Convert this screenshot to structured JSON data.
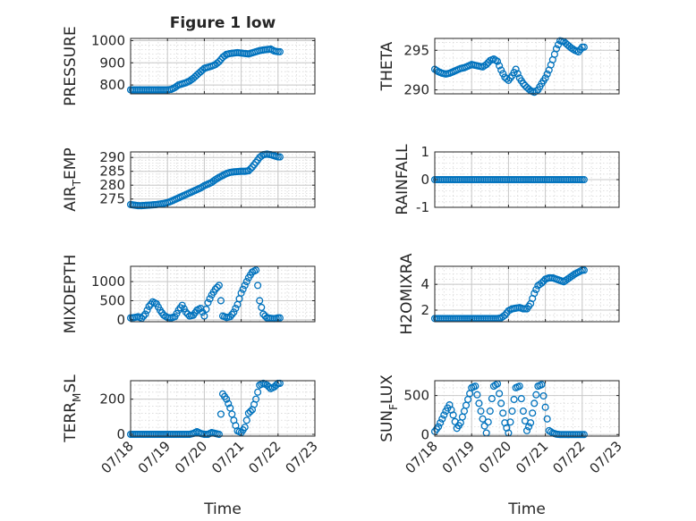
{
  "figure": {
    "title": "Figure 1 low",
    "marker_color": "#0072BD"
  },
  "chart_data": [
    {
      "id": "pressure",
      "type": "scatter",
      "title": "Figure 1 low",
      "ylabel": [
        {
          "t": "PRESSURE"
        }
      ],
      "xlabel": "",
      "xlim": [
        0,
        5
      ],
      "ylim": [
        760,
        1010
      ],
      "yticks": [
        800,
        900,
        1000
      ],
      "yticklabels": [
        "800",
        "900",
        "1000"
      ],
      "xticks": [
        0,
        1,
        2,
        3,
        4,
        5
      ],
      "xticklabels": [],
      "x": [
        0.0,
        0.1,
        0.2,
        0.3,
        0.4,
        0.5,
        0.6,
        0.7,
        0.8,
        0.9,
        1.0,
        1.1,
        1.2,
        1.3,
        1.4,
        1.5,
        1.6,
        1.7,
        1.8,
        1.9,
        2.0,
        2.1,
        2.2,
        2.3,
        2.4,
        2.5,
        2.6,
        2.7,
        2.8,
        2.9,
        3.0,
        3.1,
        3.2,
        3.3,
        3.4,
        3.5,
        3.6,
        3.7,
        3.8,
        3.9,
        4.0
      ],
      "y": [
        778,
        778,
        778,
        778,
        778,
        778,
        778,
        778,
        778,
        778,
        778,
        780,
        788,
        800,
        805,
        810,
        818,
        830,
        845,
        860,
        875,
        880,
        885,
        892,
        905,
        925,
        938,
        942,
        944,
        946,
        944,
        942,
        940,
        945,
        950,
        955,
        958,
        960,
        962,
        953,
        950
      ]
    },
    {
      "id": "theta",
      "type": "scatter",
      "ylabel": [
        {
          "t": "THETA"
        }
      ],
      "xlabel": "",
      "xlim": [
        0,
        5
      ],
      "ylim": [
        289.5,
        296.5
      ],
      "yticks": [
        290,
        295
      ],
      "yticklabels": [
        "290",
        "295"
      ],
      "xticks": [
        0,
        1,
        2,
        3,
        4,
        5
      ],
      "xticklabels": [],
      "x": [
        0.0,
        0.1,
        0.2,
        0.3,
        0.4,
        0.5,
        0.6,
        0.7,
        0.8,
        0.9,
        1.0,
        1.1,
        1.2,
        1.3,
        1.4,
        1.5,
        1.6,
        1.7,
        1.8,
        1.9,
        2.0,
        2.1,
        2.2,
        2.3,
        2.4,
        2.5,
        2.6,
        2.7,
        2.8,
        2.9,
        3.0,
        3.1,
        3.2,
        3.3,
        3.4,
        3.5,
        3.6,
        3.7,
        3.8,
        3.9,
        4.0
      ],
      "y": [
        292.6,
        292.3,
        292.1,
        292.0,
        292.1,
        292.3,
        292.5,
        292.7,
        292.8,
        293.0,
        293.2,
        293.1,
        293.0,
        292.9,
        293.2,
        293.7,
        293.9,
        293.6,
        292.5,
        291.6,
        291.2,
        291.8,
        292.6,
        291.5,
        290.8,
        290.3,
        289.9,
        289.7,
        290.0,
        290.8,
        291.5,
        292.5,
        293.8,
        295.2,
        296.2,
        296.1,
        295.7,
        295.3,
        295.0,
        294.8,
        295.4
      ]
    },
    {
      "id": "air_temp",
      "type": "scatter",
      "ylabel": [
        {
          "t": "AIR"
        },
        {
          "t": "T",
          "sub": true
        },
        {
          "t": "EMP"
        }
      ],
      "xlabel": "",
      "xlim": [
        0,
        5
      ],
      "ylim": [
        272,
        292
      ],
      "yticks": [
        275,
        280,
        285,
        290
      ],
      "yticklabels": [
        "275",
        "280",
        "285",
        "290"
      ],
      "xticks": [
        0,
        1,
        2,
        3,
        4,
        5
      ],
      "xticklabels": [],
      "x": [
        0.0,
        0.1,
        0.2,
        0.3,
        0.4,
        0.5,
        0.6,
        0.7,
        0.8,
        0.9,
        1.0,
        1.1,
        1.2,
        1.3,
        1.4,
        1.5,
        1.6,
        1.7,
        1.8,
        1.9,
        2.0,
        2.1,
        2.2,
        2.3,
        2.4,
        2.5,
        2.6,
        2.7,
        2.8,
        2.9,
        3.0,
        3.1,
        3.2,
        3.3,
        3.4,
        3.5,
        3.6,
        3.7,
        3.8,
        3.9,
        4.0
      ],
      "y": [
        273.0,
        272.8,
        272.6,
        272.6,
        272.7,
        272.8,
        272.9,
        273.0,
        273.2,
        273.4,
        273.7,
        274.2,
        274.8,
        275.4,
        276.0,
        276.6,
        277.2,
        277.8,
        278.4,
        279.0,
        279.8,
        280.4,
        281.0,
        282.0,
        282.8,
        283.5,
        284.2,
        284.6,
        284.8,
        284.9,
        285.0,
        285.0,
        285.2,
        286.5,
        288.2,
        290.0,
        291.0,
        291.2,
        291.0,
        290.6,
        290.2
      ]
    },
    {
      "id": "rainfall",
      "type": "scatter",
      "ylabel": [
        {
          "t": "RAINFALL"
        }
      ],
      "xlabel": "",
      "xlim": [
        0,
        5
      ],
      "ylim": [
        -1,
        1
      ],
      "yticks": [
        -1,
        0,
        1
      ],
      "yticklabels": [
        "-1",
        "0",
        "1"
      ],
      "xticks": [
        0,
        1,
        2,
        3,
        4,
        5
      ],
      "xticklabels": [],
      "x": [
        0.0,
        0.1,
        0.2,
        0.3,
        0.4,
        0.5,
        0.6,
        0.7,
        0.8,
        0.9,
        1.0,
        1.1,
        1.2,
        1.3,
        1.4,
        1.5,
        1.6,
        1.7,
        1.8,
        1.9,
        2.0,
        2.1,
        2.2,
        2.3,
        2.4,
        2.5,
        2.6,
        2.7,
        2.8,
        2.9,
        3.0,
        3.1,
        3.2,
        3.3,
        3.4,
        3.5,
        3.6,
        3.7,
        3.8,
        3.9,
        4.0
      ],
      "y": [
        0,
        0,
        0,
        0,
        0,
        0,
        0,
        0,
        0,
        0,
        0,
        0,
        0,
        0,
        0,
        0,
        0,
        0,
        0,
        0,
        0,
        0,
        0,
        0,
        0,
        0,
        0,
        0,
        0,
        0,
        0,
        0,
        0,
        0,
        0,
        0,
        0,
        0,
        0,
        0,
        0
      ]
    },
    {
      "id": "mixdepth",
      "type": "scatter",
      "ylabel": [
        {
          "t": "MIXDEPTH"
        }
      ],
      "xlabel": "",
      "xlim": [
        0,
        5
      ],
      "ylim": [
        -50,
        1400
      ],
      "yticks": [
        0,
        500,
        1000
      ],
      "yticklabels": [
        "0",
        "500",
        "1000"
      ],
      "xticks": [
        0,
        1,
        2,
        3,
        4,
        5
      ],
      "xticklabels": [],
      "x": [
        0.0,
        0.1,
        0.2,
        0.3,
        0.4,
        0.5,
        0.6,
        0.7,
        0.8,
        0.9,
        1.0,
        1.1,
        1.2,
        1.3,
        1.4,
        1.5,
        1.6,
        1.7,
        1.8,
        1.9,
        2.0,
        2.1,
        2.2,
        2.3,
        2.4,
        2.5,
        2.6,
        2.7,
        2.8,
        2.9,
        3.0,
        3.1,
        3.2,
        3.3,
        3.4,
        3.5,
        3.6,
        3.7,
        3.8,
        3.9,
        4.0
      ],
      "y": [
        50,
        60,
        80,
        40,
        150,
        350,
        470,
        420,
        250,
        120,
        60,
        50,
        80,
        250,
        380,
        200,
        100,
        120,
        250,
        300,
        100,
        450,
        650,
        800,
        900,
        100,
        60,
        80,
        200,
        400,
        700,
        900,
        1100,
        1250,
        1300,
        500,
        150,
        50,
        40,
        30,
        50
      ]
    },
    {
      "id": "h2omixra",
      "type": "scatter",
      "ylabel": [
        {
          "t": "H2OMIXRA"
        }
      ],
      "xlabel": "",
      "xlim": [
        0,
        5
      ],
      "ylim": [
        1.1,
        5.4
      ],
      "yticks": [
        2,
        4
      ],
      "yticklabels": [
        "2",
        "4"
      ],
      "xticks": [
        0,
        1,
        2,
        3,
        4,
        5
      ],
      "xticklabels": [],
      "x": [
        0.0,
        0.1,
        0.2,
        0.3,
        0.4,
        0.5,
        0.6,
        0.7,
        0.8,
        0.9,
        1.0,
        1.1,
        1.2,
        1.3,
        1.4,
        1.5,
        1.6,
        1.7,
        1.8,
        1.9,
        2.0,
        2.1,
        2.2,
        2.3,
        2.4,
        2.5,
        2.6,
        2.7,
        2.8,
        2.9,
        3.0,
        3.1,
        3.2,
        3.3,
        3.4,
        3.5,
        3.6,
        3.7,
        3.8,
        3.9,
        4.0
      ],
      "y": [
        1.35,
        1.35,
        1.35,
        1.35,
        1.35,
        1.35,
        1.35,
        1.35,
        1.35,
        1.35,
        1.35,
        1.35,
        1.35,
        1.35,
        1.35,
        1.35,
        1.35,
        1.35,
        1.4,
        1.6,
        1.95,
        2.1,
        2.15,
        2.2,
        2.1,
        2.1,
        2.5,
        3.3,
        3.9,
        4.1,
        4.4,
        4.5,
        4.5,
        4.4,
        4.3,
        4.2,
        4.4,
        4.6,
        4.8,
        4.95,
        5.1
      ]
    },
    {
      "id": "terr_msl",
      "type": "scatter",
      "ylabel": [
        {
          "t": "TERR"
        },
        {
          "t": "M",
          "sub": true
        },
        {
          "t": "SL"
        }
      ],
      "xlabel": "",
      "xlim": [
        0,
        5
      ],
      "ylim": [
        -10,
        305
      ],
      "yticks": [
        0,
        200
      ],
      "yticklabels": [
        "0",
        "200"
      ],
      "xticks": [
        0,
        1,
        2,
        3,
        4,
        5
      ],
      "xticklabels": [],
      "x": [
        0.0,
        0.1,
        0.2,
        0.3,
        0.4,
        0.5,
        0.6,
        0.7,
        0.8,
        0.9,
        1.0,
        1.1,
        1.2,
        1.3,
        1.4,
        1.5,
        1.6,
        1.7,
        1.8,
        1.9,
        2.0,
        2.1,
        2.2,
        2.3,
        2.4,
        2.5,
        2.6,
        2.7,
        2.8,
        2.9,
        3.0,
        3.1,
        3.2,
        3.3,
        3.4,
        3.5,
        3.6,
        3.7,
        3.8,
        3.9,
        4.0
      ],
      "y": [
        0,
        0,
        0,
        0,
        0,
        0,
        0,
        0,
        0,
        0,
        0,
        0,
        0,
        0,
        0,
        0,
        0,
        5,
        15,
        5,
        0,
        0,
        10,
        5,
        0,
        230,
        200,
        150,
        80,
        20,
        10,
        40,
        120,
        140,
        200,
        280,
        290,
        280,
        260,
        270,
        290
      ]
    },
    {
      "id": "sun_flux",
      "type": "scatter",
      "ylabel": [
        {
          "t": "SUN"
        },
        {
          "t": "F",
          "sub": true
        },
        {
          "t": "LUX"
        }
      ],
      "xlabel": "Time",
      "xlim": [
        0,
        5
      ],
      "ylim": [
        -20,
        690
      ],
      "yticks": [
        0,
        500
      ],
      "yticklabels": [
        "0",
        "500"
      ],
      "xticks": [
        0,
        1,
        2,
        3,
        4,
        5
      ],
      "xticklabels": [
        "07/18",
        "07/19",
        "07/20",
        "07/21",
        "07/22",
        "07/23"
      ],
      "x": [
        0.0,
        0.1,
        0.2,
        0.3,
        0.4,
        0.5,
        0.6,
        0.7,
        0.8,
        0.9,
        1.0,
        1.1,
        1.2,
        1.3,
        1.4,
        1.5,
        1.6,
        1.7,
        1.8,
        1.9,
        2.0,
        2.1,
        2.2,
        2.3,
        2.4,
        2.5,
        2.6,
        2.7,
        2.8,
        2.9,
        3.0,
        3.1,
        3.2,
        3.3,
        3.4,
        3.5,
        3.6,
        3.7,
        3.8,
        3.9,
        4.0
      ],
      "y": [
        40,
        100,
        200,
        300,
        380,
        250,
        80,
        150,
        300,
        450,
        600,
        620,
        400,
        200,
        20,
        300,
        620,
        650,
        400,
        150,
        20,
        300,
        600,
        620,
        300,
        50,
        150,
        400,
        620,
        640,
        350,
        50,
        20,
        5,
        0,
        0,
        0,
        0,
        0,
        0,
        0
      ]
    }
  ],
  "bottom_left_axes": {
    "xlabel": "Time",
    "xticklabels": [
      "07/18",
      "07/19",
      "07/20",
      "07/21",
      "07/22",
      "07/23"
    ]
  }
}
